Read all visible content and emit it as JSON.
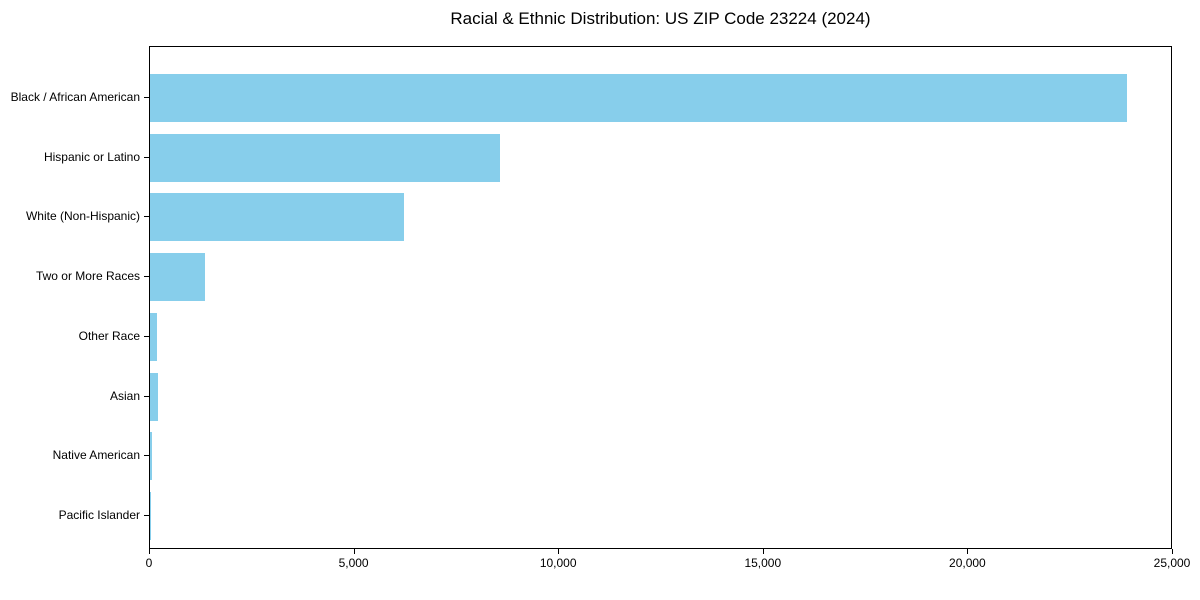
{
  "chart_data": {
    "type": "bar",
    "orientation": "horizontal",
    "title": "Racial & Ethnic Distribution: US ZIP Code 23224 (2024)",
    "categories": [
      "Black / African American",
      "Hispanic or Latino",
      "White (Non-Hispanic)",
      "Two or More Races",
      "Other Race",
      "Asian",
      "Native American",
      "Pacific Islander"
    ],
    "values": [
      23880,
      8550,
      6210,
      1350,
      170,
      185,
      40,
      10
    ],
    "xlabel": "",
    "ylabel": "",
    "xlim": [
      0,
      25000
    ],
    "xticks": [
      0,
      5000,
      10000,
      15000,
      20000,
      25000
    ],
    "xtick_labels": [
      "0",
      "5,000",
      "10,000",
      "15,000",
      "20,000",
      "25,000"
    ],
    "bar_color": "#87CEEB",
    "spine_color": "#000000",
    "text_color": "#000000",
    "background_color": "#FFFFFF",
    "grid": false,
    "legend": "none"
  }
}
